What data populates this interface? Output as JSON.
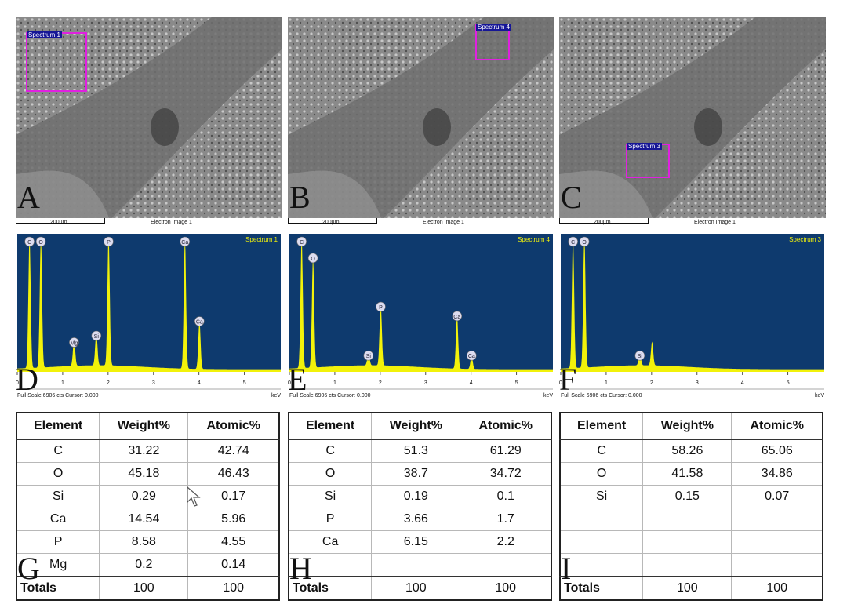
{
  "panels": [
    {
      "letter_sem": "A",
      "letter_spec": "D",
      "letter_table": "G",
      "spectrum_box_label": "Spectrum 1",
      "spectrum_title": "Spectrum 1"
    },
    {
      "letter_sem": "B",
      "letter_spec": "E",
      "letter_table": "H",
      "spectrum_box_label": "Spectrum 4",
      "spectrum_title": "Spectrum 4"
    },
    {
      "letter_sem": "C",
      "letter_spec": "F",
      "letter_table": "I",
      "spectrum_box_label": "Spectrum 3",
      "spectrum_title": "Spectrum 3"
    }
  ],
  "sem_common": {
    "scale_label": "200µm",
    "image_label": "Electron Image 1"
  },
  "spectrum_common": {
    "footer": "Full Scale 6906 cts Cursor: 0.000",
    "unit": "keV",
    "ticks": [
      "0",
      "1",
      "2",
      "3",
      "4",
      "5"
    ],
    "bg_color": "#0e3a6e",
    "fill_color": "#f2f20a"
  },
  "chart_data": [
    {
      "type": "area",
      "title": "Spectrum 1",
      "xlabel": "keV",
      "xlim": [
        0,
        5.8
      ],
      "peaks": [
        {
          "label": "C",
          "x": 0.27,
          "y": 1.0
        },
        {
          "label": "O",
          "x": 0.52,
          "y": 1.0
        },
        {
          "label": "Mg",
          "x": 1.25,
          "y": 0.2
        },
        {
          "label": "Si",
          "x": 1.74,
          "y": 0.25
        },
        {
          "label": "P",
          "x": 2.01,
          "y": 1.0
        },
        {
          "label": "Ca",
          "x": 3.69,
          "y": 1.0
        },
        {
          "label": "Ca",
          "x": 4.01,
          "y": 0.36
        }
      ]
    },
    {
      "type": "area",
      "title": "Spectrum 4",
      "xlabel": "keV",
      "xlim": [
        0,
        5.8
      ],
      "peaks": [
        {
          "label": "C",
          "x": 0.27,
          "y": 1.0
        },
        {
          "label": "O",
          "x": 0.52,
          "y": 0.84
        },
        {
          "label": "Si",
          "x": 1.74,
          "y": 0.1
        },
        {
          "label": "P",
          "x": 2.01,
          "y": 0.47
        },
        {
          "label": "Ca",
          "x": 3.69,
          "y": 0.4
        },
        {
          "label": "Ca",
          "x": 4.01,
          "y": 0.1
        }
      ]
    },
    {
      "type": "area",
      "title": "Spectrum 3",
      "xlabel": "keV",
      "xlim": [
        0,
        5.8
      ],
      "peaks": [
        {
          "label": "C",
          "x": 0.27,
          "y": 1.0
        },
        {
          "label": "O",
          "x": 0.52,
          "y": 1.0
        },
        {
          "label": "Si",
          "x": 1.74,
          "y": 0.1
        },
        {
          "label": "",
          "x": 2.01,
          "y": 0.18
        }
      ]
    }
  ],
  "tables": [
    {
      "headers": [
        "Element",
        "Weight%",
        "Atomic%"
      ],
      "rows": [
        [
          "C",
          "31.22",
          "42.74"
        ],
        [
          "O",
          "45.18",
          "46.43"
        ],
        [
          "Si",
          "0.29",
          "0.17"
        ],
        [
          "Ca",
          "14.54",
          "5.96"
        ],
        [
          "P",
          "8.58",
          "4.55"
        ],
        [
          "Mg",
          "0.2",
          "0.14"
        ]
      ],
      "totals": [
        "Totals",
        "100",
        "100"
      ]
    },
    {
      "headers": [
        "Element",
        "Weight%",
        "Atomic%"
      ],
      "rows": [
        [
          "C",
          "51.3",
          "61.29"
        ],
        [
          "O",
          "38.7",
          "34.72"
        ],
        [
          "Si",
          "0.19",
          "0.1"
        ],
        [
          "P",
          "3.66",
          "1.7"
        ],
        [
          "Ca",
          "6.15",
          "2.2"
        ],
        [
          "",
          "",
          " "
        ]
      ],
      "totals": [
        "Totals",
        "100",
        "100"
      ]
    },
    {
      "headers": [
        "Element",
        "Weight%",
        "Atomic%"
      ],
      "rows": [
        [
          "C",
          "58.26",
          "65.06"
        ],
        [
          "O",
          "41.58",
          "34.86"
        ],
        [
          "Si",
          "0.15",
          "0.07"
        ],
        [
          "",
          "",
          ""
        ],
        [
          "",
          "",
          ""
        ],
        [
          "",
          "",
          ""
        ]
      ],
      "totals": [
        "Totals",
        "100",
        "100"
      ]
    }
  ]
}
